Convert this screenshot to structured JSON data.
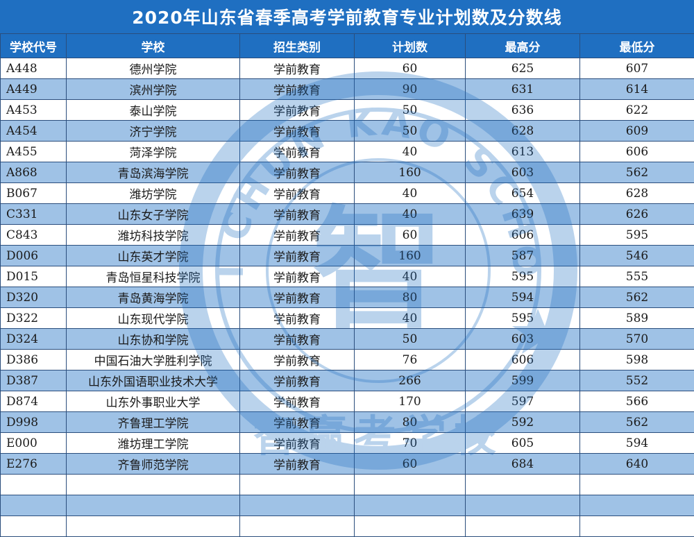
{
  "title": "2020年山东省春季高考学前教育专业计划数及分数线",
  "columns": [
    "学校代号",
    "学校",
    "招生类别",
    "计划数",
    "最高分",
    "最低分"
  ],
  "rows": [
    {
      "code": "A448",
      "school": "德州学院",
      "category": "学前教育",
      "plan": "60",
      "max": "625",
      "min": "607"
    },
    {
      "code": "A449",
      "school": "滨州学院",
      "category": "学前教育",
      "plan": "90",
      "max": "631",
      "min": "614"
    },
    {
      "code": "A453",
      "school": "泰山学院",
      "category": "学前教育",
      "plan": "50",
      "max": "636",
      "min": "622"
    },
    {
      "code": "A454",
      "school": "济宁学院",
      "category": "学前教育",
      "plan": "50",
      "max": "628",
      "min": "609"
    },
    {
      "code": "A455",
      "school": "菏泽学院",
      "category": "学前教育",
      "plan": "40",
      "max": "613",
      "min": "606"
    },
    {
      "code": "A868",
      "school": "青岛滨海学院",
      "category": "学前教育",
      "plan": "160",
      "max": "603",
      "min": "562"
    },
    {
      "code": "B067",
      "school": "潍坊学院",
      "category": "学前教育",
      "plan": "40",
      "max": "654",
      "min": "628"
    },
    {
      "code": "C331",
      "school": "山东女子学院",
      "category": "学前教育",
      "plan": "40",
      "max": "639",
      "min": "626"
    },
    {
      "code": "C843",
      "school": "潍坊科技学院",
      "category": "学前教育",
      "plan": "60",
      "max": "606",
      "min": "595"
    },
    {
      "code": "D006",
      "school": "山东英才学院",
      "category": "学前教育",
      "plan": "160",
      "max": "587",
      "min": "546"
    },
    {
      "code": "D015",
      "school": "青岛恒星科技学院",
      "category": "学前教育",
      "plan": "40",
      "max": "595",
      "min": "555"
    },
    {
      "code": "D320",
      "school": "青岛黄海学院",
      "category": "学前教育",
      "plan": "80",
      "max": "594",
      "min": "562"
    },
    {
      "code": "D322",
      "school": "山东现代学院",
      "category": "学前教育",
      "plan": "40",
      "max": "595",
      "min": "589"
    },
    {
      "code": "D324",
      "school": "山东协和学院",
      "category": "学前教育",
      "plan": "50",
      "max": "603",
      "min": "570"
    },
    {
      "code": "D386",
      "school": "中国石油大学胜利学院",
      "category": "学前教育",
      "plan": "76",
      "max": "606",
      "min": "598"
    },
    {
      "code": "D387",
      "school": "山东外国语职业技术大学",
      "category": "学前教育",
      "plan": "266",
      "max": "599",
      "min": "552"
    },
    {
      "code": "D874",
      "school": "山东外事职业大学",
      "category": "学前教育",
      "plan": "170",
      "max": "597",
      "min": "566"
    },
    {
      "code": "D998",
      "school": "齐鲁理工学院",
      "category": "学前教育",
      "plan": "80",
      "max": "592",
      "min": "562"
    },
    {
      "code": "E000",
      "school": "潍坊理工学院",
      "category": "学前教育",
      "plan": "70",
      "max": "605",
      "min": "594"
    },
    {
      "code": "E276",
      "school": "齐鲁师范学院",
      "category": "学前教育",
      "plan": "60",
      "max": "684",
      "min": "640"
    },
    {
      "code": "",
      "school": "",
      "category": "",
      "plan": "",
      "max": "",
      "min": ""
    },
    {
      "code": "",
      "school": "",
      "category": "",
      "plan": "",
      "max": "",
      "min": ""
    },
    {
      "code": "",
      "school": "",
      "category": "",
      "plan": "",
      "max": "",
      "min": ""
    }
  ],
  "watermark": {
    "ring_text": "ZHI CHUN KAO SCHOOL",
    "bottom_text": "智赢考学校",
    "center_glyph": "智"
  },
  "colors": {
    "header_bg": "#1f6fc1",
    "header_text": "#ffffff",
    "band_row": "#9fc2e6",
    "border": "#2a4d7c",
    "watermark": "#1f6fc1"
  }
}
